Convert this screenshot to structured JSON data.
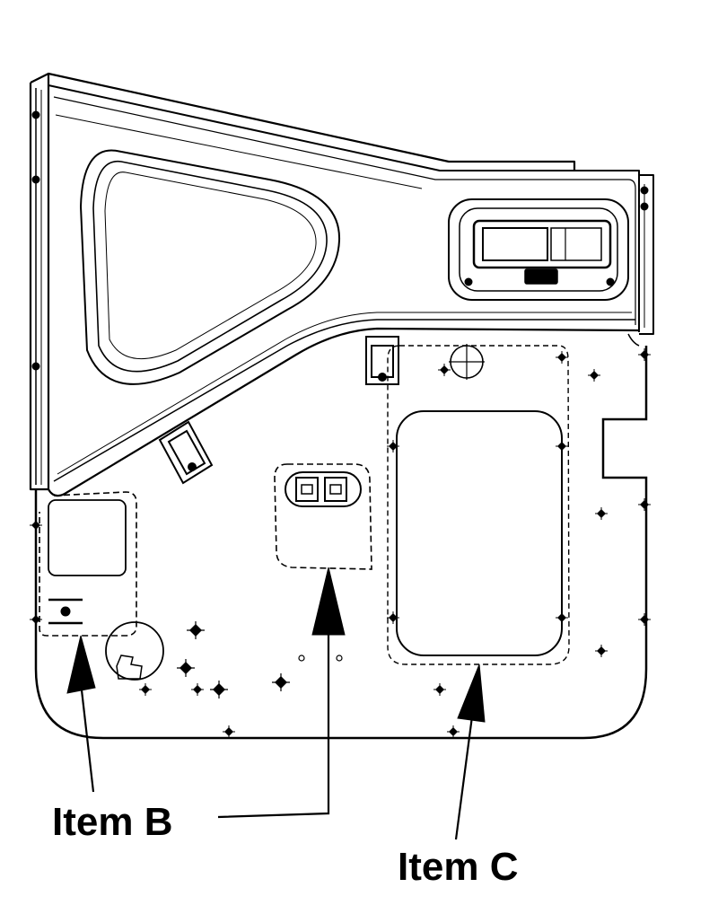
{
  "labels": {
    "item_b": "Item B",
    "item_c": "Item C"
  },
  "colors": {
    "line": "#000000",
    "background": "#ffffff"
  }
}
